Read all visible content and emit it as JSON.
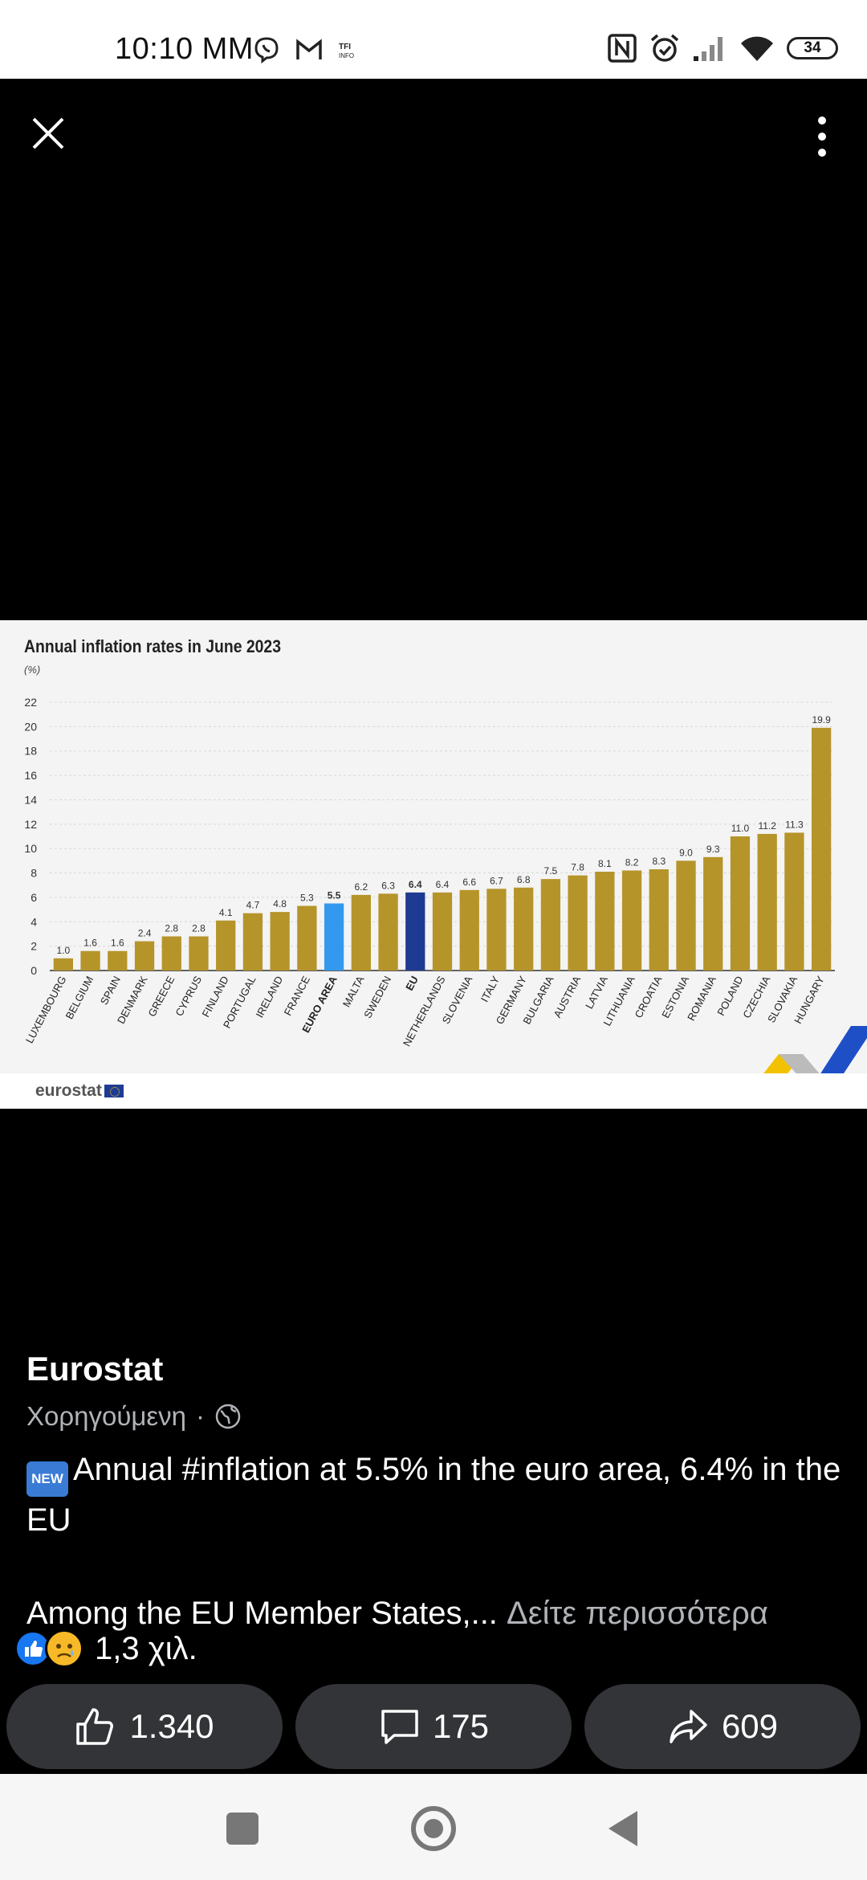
{
  "status_bar": {
    "time": "10:10 MM",
    "left_icons": [
      "viber-icon",
      "gmail-icon",
      "tfi-info-icon"
    ],
    "right_icons": [
      "nfc-icon",
      "alarm-icon",
      "signal-icon",
      "wifi-icon"
    ],
    "battery": "34"
  },
  "viewer": {
    "close_icon": "close-icon",
    "more_icon": "more-vertical-icon"
  },
  "chart_data": {
    "type": "bar",
    "title": "Annual inflation rates in June 2023",
    "ylabel": "(%)",
    "ylim": [
      0,
      22
    ],
    "yticks": [
      0,
      2,
      4,
      6,
      8,
      10,
      12,
      14,
      16,
      18,
      20,
      22
    ],
    "grid": true,
    "categories": [
      "LUXEMBOURG",
      "BELGIUM",
      "SPAIN",
      "DENMARK",
      "GREECE",
      "CYPRUS",
      "FINLAND",
      "PORTUGAL",
      "IRELAND",
      "FRANCE",
      "EURO AREA",
      "MALTA",
      "SWEDEN",
      "EU",
      "NETHERLANDS",
      "SLOVENIA",
      "ITALY",
      "GERMANY",
      "BULGARIA",
      "AUSTRIA",
      "LATVIA",
      "LITHUANIA",
      "CROATIA",
      "ESTONIA",
      "ROMANIA",
      "POLAND",
      "CZECHIA",
      "SLOVAKIA",
      "HUNGARY"
    ],
    "values": [
      1.0,
      1.6,
      1.6,
      2.4,
      2.8,
      2.8,
      4.1,
      4.7,
      4.8,
      5.3,
      5.5,
      6.2,
      6.3,
      6.4,
      6.4,
      6.6,
      6.7,
      6.8,
      7.5,
      7.8,
      8.1,
      8.2,
      8.3,
      9.0,
      9.3,
      11.0,
      11.2,
      11.3,
      19.9
    ],
    "value_labels": [
      "1.0",
      "1.6",
      "1.6",
      "2.4",
      "2.8",
      "2.8",
      "4.1",
      "4.7",
      "4.8",
      "5.3",
      "5.5",
      "6.2",
      "6.3",
      "6.4",
      "6.4",
      "6.6",
      "6.7",
      "6.8",
      "7.5",
      "7.8",
      "8.1",
      "8.2",
      "8.3",
      "9.0",
      "9.3",
      "11.0",
      "11.2",
      "11.3",
      "19.9"
    ],
    "highlight": {
      "EURO AREA": "#3399ee",
      "EU": "#1f3a93"
    },
    "colors": {
      "default": "#b5942a"
    },
    "source_logo": "eurostat"
  },
  "post": {
    "author": "Eurostat",
    "sponsored": "Χορηγούμενη",
    "separator": "·",
    "visibility_icon": "globe-icon",
    "new_badge": "NEW",
    "text_line1": "Annual #inflation at 5.5% in the euro area, 6.4% in the EU",
    "text_para2": "Among the EU Member States,...",
    "see_more": "Δείτε περισσότερα"
  },
  "reactions": {
    "icons": [
      "like-reaction-icon",
      "sad-reaction-icon"
    ],
    "count": "1,3 χιλ."
  },
  "actions": {
    "like_count": "1.340",
    "comment_count": "175",
    "share_count": "609"
  },
  "colors": {
    "background": "#000000",
    "action_button": "#333437",
    "accent": "#1877f2"
  }
}
